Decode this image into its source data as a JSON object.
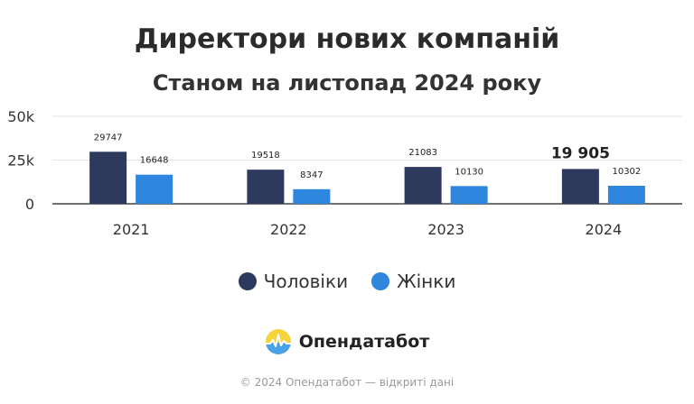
{
  "title": "Директори нових компаній",
  "subtitle": "Станом на листопад 2024 року",
  "legend": [
    {
      "label": "Чоловіки",
      "color": "#2d3a5e"
    },
    {
      "label": "Жінки",
      "color": "#2e86de"
    }
  ],
  "logo": {
    "text": "Опендатабот",
    "icon": "opendatabot-logo-icon"
  },
  "footer": "© 2024 Опендатабот — відкриті дані",
  "chart_data": {
    "type": "bar",
    "title": "Директори нових компаній",
    "subtitle": "Станом на листопад 2024 року",
    "categories": [
      "2021",
      "2022",
      "2023",
      "2024"
    ],
    "series": [
      {
        "name": "Чоловіки",
        "color": "#2d3a5e",
        "values": [
          29747,
          19518,
          21083,
          19905
        ],
        "labels": [
          "29747",
          "19518",
          "21083",
          "19 905"
        ]
      },
      {
        "name": "Жінки",
        "color": "#2e86de",
        "values": [
          16648,
          8347,
          10130,
          10302
        ],
        "labels": [
          "16648",
          "8347",
          "10130",
          "10302"
        ]
      }
    ],
    "yticks": [
      {
        "value": 0,
        "label": "0"
      },
      {
        "value": 25000,
        "label": "25k"
      },
      {
        "value": 50000,
        "label": "50k"
      }
    ],
    "ylim": [
      0,
      50000
    ],
    "grid": true,
    "legend_position": "bottom"
  }
}
